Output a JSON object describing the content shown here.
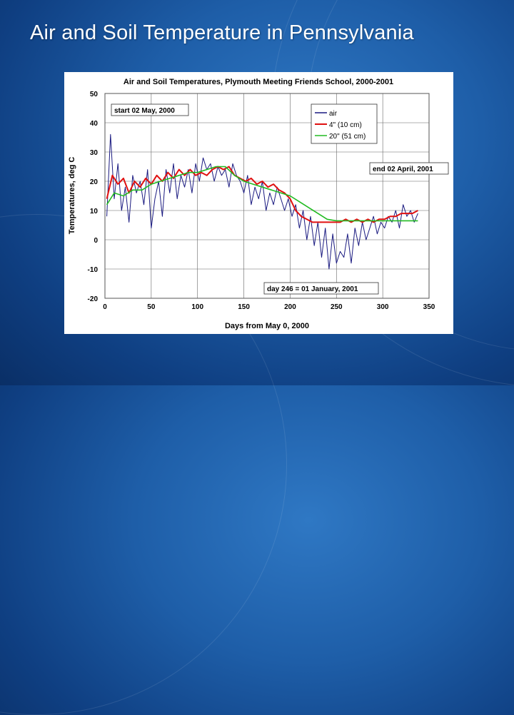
{
  "slide": {
    "title": "Air and Soil Temperature in Pennsylvania"
  },
  "chart_data": {
    "type": "line",
    "title": "Air and Soil Temperatures, Plymouth Meeting Friends School, 2000-2001",
    "xlabel": "Days from May 0, 2000",
    "ylabel": "Temperatures, deg C",
    "xlim": [
      0,
      350
    ],
    "ylim": [
      -20,
      50
    ],
    "x_ticks": [
      "0",
      "50",
      "100",
      "150",
      "200",
      "250",
      "300",
      "350"
    ],
    "y_ticks": [
      "50",
      "40",
      "30",
      "20",
      "10",
      "0",
      "-10",
      "-20"
    ],
    "grid": true,
    "legend_position": "top-right",
    "colors": {
      "air": "#1a1a80",
      "soil_4in": "#e01010",
      "soil_20in": "#22bb22"
    },
    "annotations": {
      "start": "start 02 May, 2000",
      "end": "end 02 April, 2001",
      "jan": "day 246 = 01 January, 2001"
    },
    "series": [
      {
        "name": "air",
        "x": [
          2,
          6,
          10,
          14,
          18,
          22,
          26,
          30,
          34,
          38,
          42,
          46,
          50,
          54,
          58,
          62,
          66,
          70,
          74,
          78,
          82,
          86,
          90,
          94,
          98,
          102,
          106,
          110,
          114,
          118,
          122,
          126,
          130,
          134,
          138,
          142,
          146,
          150,
          154,
          158,
          162,
          166,
          170,
          174,
          178,
          182,
          186,
          190,
          194,
          198,
          202,
          206,
          210,
          214,
          218,
          222,
          226,
          230,
          234,
          238,
          242,
          246,
          250,
          254,
          258,
          262,
          266,
          270,
          274,
          278,
          282,
          286,
          290,
          294,
          298,
          302,
          306,
          310,
          314,
          318,
          322,
          326,
          330,
          334,
          338
        ],
        "y": [
          8,
          36,
          14,
          26,
          10,
          18,
          6,
          22,
          16,
          20,
          12,
          24,
          4,
          14,
          20,
          8,
          24,
          16,
          26,
          14,
          22,
          18,
          24,
          16,
          26,
          20,
          28,
          24,
          26,
          20,
          25,
          22,
          24,
          18,
          26,
          22,
          20,
          16,
          22,
          12,
          18,
          14,
          20,
          10,
          16,
          12,
          18,
          14,
          10,
          14,
          8,
          12,
          4,
          10,
          0,
          8,
          -2,
          6,
          -6,
          4,
          -10,
          2,
          -8,
          -4,
          -6,
          2,
          -8,
          4,
          -2,
          6,
          0,
          4,
          8,
          2,
          6,
          4,
          8,
          6,
          10,
          4,
          12,
          8,
          10,
          6,
          9
        ]
      },
      {
        "name": "4\" (10 cm)",
        "x": [
          2,
          8,
          14,
          20,
          26,
          32,
          38,
          44,
          50,
          56,
          62,
          68,
          74,
          80,
          86,
          92,
          98,
          104,
          110,
          116,
          122,
          128,
          134,
          140,
          146,
          152,
          158,
          164,
          170,
          176,
          182,
          188,
          194,
          200,
          206,
          212,
          218,
          224,
          230,
          236,
          242,
          248,
          254,
          260,
          266,
          272,
          278,
          284,
          290,
          296,
          302,
          308,
          314,
          320,
          326,
          332,
          338
        ],
        "y": [
          14,
          22,
          19,
          21,
          16,
          20,
          18,
          21,
          19,
          22,
          20,
          23,
          21,
          24,
          22,
          24,
          22,
          23,
          22,
          24,
          25,
          24,
          25,
          22,
          21,
          20,
          21,
          19,
          20,
          18,
          19,
          17,
          16,
          14,
          10,
          8,
          7,
          6,
          6,
          6,
          6,
          6,
          6,
          7,
          6,
          7,
          6,
          7,
          6,
          7,
          7,
          8,
          8,
          9,
          9,
          9,
          10
        ]
      },
      {
        "name": "20\" (51 cm)",
        "x": [
          2,
          10,
          20,
          30,
          40,
          50,
          60,
          70,
          80,
          90,
          100,
          110,
          120,
          130,
          140,
          150,
          160,
          170,
          180,
          190,
          200,
          210,
          220,
          230,
          240,
          250,
          260,
          270,
          280,
          290,
          300,
          310,
          320,
          330,
          338
        ],
        "y": [
          12,
          16,
          15,
          17,
          17,
          19,
          20,
          21,
          22,
          23,
          23,
          24,
          25,
          25,
          22,
          20,
          19,
          18,
          17,
          16,
          15,
          13,
          11,
          9,
          7,
          6.5,
          6.5,
          6.5,
          6.5,
          6.5,
          6.5,
          6.5,
          6.5,
          6.5,
          6.5
        ]
      }
    ]
  }
}
